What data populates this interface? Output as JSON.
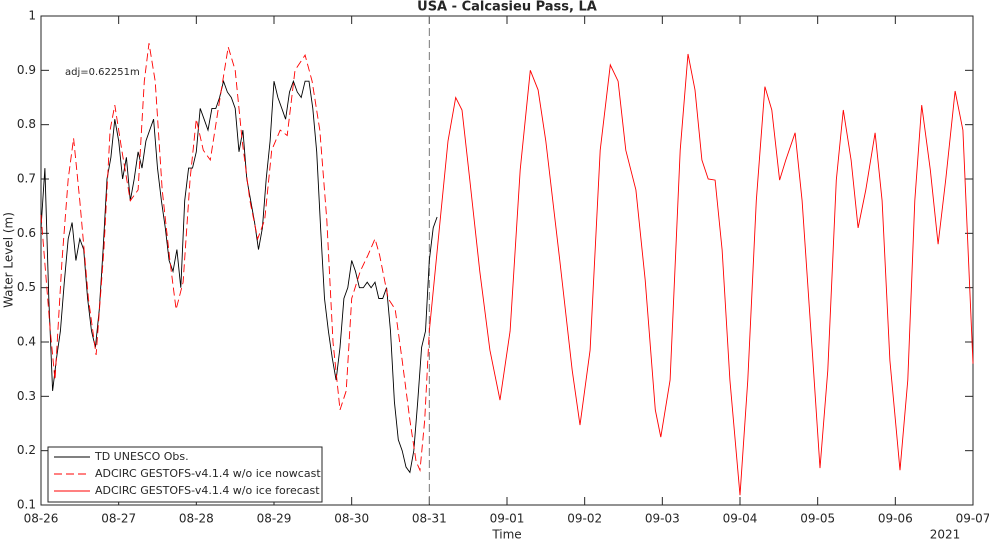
{
  "chart_data": {
    "type": "line",
    "title": "USA - Calcasieu Pass, LA",
    "xlabel": "Time",
    "ylabel": "Water Level (m)",
    "x_year_label": "2021",
    "annotation": "adj=0.62251m",
    "xlim": [
      0,
      12
    ],
    "ylim": [
      0.1,
      1
    ],
    "xticks": [
      {
        "value": 0,
        "label": "08-26"
      },
      {
        "value": 1,
        "label": "08-27"
      },
      {
        "value": 2,
        "label": "08-28"
      },
      {
        "value": 3,
        "label": "08-29"
      },
      {
        "value": 4,
        "label": "08-30"
      },
      {
        "value": 5,
        "label": "08-31"
      },
      {
        "value": 6,
        "label": "09-01"
      },
      {
        "value": 7,
        "label": "09-02"
      },
      {
        "value": 8,
        "label": "09-03"
      },
      {
        "value": 9,
        "label": "09-04"
      },
      {
        "value": 10,
        "label": "09-05"
      },
      {
        "value": 11,
        "label": "09-06"
      },
      {
        "value": 12,
        "label": "09-07"
      }
    ],
    "yticks": [
      0.1,
      0.2,
      0.3,
      0.4,
      0.5,
      0.6,
      0.7,
      0.8,
      0.9,
      1
    ],
    "forecast_start": 5,
    "legend": "lower-left",
    "grid": false,
    "series": [
      {
        "name": "TD UNESCO Obs.",
        "color": "#000000",
        "dash": false,
        "x": [
          0,
          0.05,
          0.1,
          0.15,
          0.2,
          0.25,
          0.3,
          0.35,
          0.4,
          0.45,
          0.5,
          0.55,
          0.6,
          0.65,
          0.7,
          0.75,
          0.8,
          0.85,
          0.9,
          0.95,
          1,
          1.05,
          1.1,
          1.15,
          1.2,
          1.25,
          1.3,
          1.35,
          1.4,
          1.45,
          1.5,
          1.55,
          1.6,
          1.65,
          1.7,
          1.75,
          1.8,
          1.85,
          1.9,
          1.95,
          2,
          2.05,
          2.1,
          2.15,
          2.2,
          2.25,
          2.3,
          2.35,
          2.4,
          2.45,
          2.5,
          2.55,
          2.6,
          2.65,
          2.7,
          2.75,
          2.8,
          2.85,
          2.9,
          2.95,
          3,
          3.05,
          3.1,
          3.15,
          3.2,
          3.25,
          3.3,
          3.35,
          3.4,
          3.45,
          3.5,
          3.55,
          3.6,
          3.65,
          3.7,
          3.75,
          3.8,
          3.85,
          3.9,
          3.95,
          4,
          4.05,
          4.1,
          4.15,
          4.2,
          4.25,
          4.3,
          4.35,
          4.4,
          4.45,
          4.5,
          4.55,
          4.6,
          4.65,
          4.7,
          4.75,
          4.8,
          4.85,
          4.9,
          4.95,
          5,
          5.05,
          5.1
        ],
        "values": [
          0.61,
          0.72,
          0.48,
          0.31,
          0.37,
          0.42,
          0.51,
          0.59,
          0.62,
          0.55,
          0.59,
          0.57,
          0.48,
          0.42,
          0.39,
          0.46,
          0.57,
          0.7,
          0.74,
          0.81,
          0.77,
          0.7,
          0.74,
          0.66,
          0.7,
          0.75,
          0.72,
          0.77,
          0.79,
          0.81,
          0.72,
          0.66,
          0.61,
          0.55,
          0.53,
          0.57,
          0.5,
          0.66,
          0.72,
          0.72,
          0.75,
          0.83,
          0.81,
          0.79,
          0.83,
          0.83,
          0.85,
          0.88,
          0.86,
          0.85,
          0.83,
          0.75,
          0.79,
          0.7,
          0.66,
          0.62,
          0.57,
          0.61,
          0.7,
          0.77,
          0.88,
          0.85,
          0.83,
          0.81,
          0.86,
          0.88,
          0.86,
          0.85,
          0.88,
          0.88,
          0.83,
          0.75,
          0.61,
          0.48,
          0.42,
          0.37,
          0.33,
          0.39,
          0.48,
          0.5,
          0.55,
          0.53,
          0.5,
          0.5,
          0.51,
          0.5,
          0.51,
          0.48,
          0.48,
          0.5,
          0.42,
          0.29,
          0.22,
          0.2,
          0.17,
          0.16,
          0.2,
          0.29,
          0.39,
          0.42,
          0.55,
          0.61,
          0.63
        ]
      },
      {
        "name": "ADCIRC GESTOFS-v4.1.4 w/o ice nowcast",
        "color": "#ff0000",
        "dash": true,
        "x": [
          0,
          0.12,
          0.18,
          0.27,
          0.35,
          0.42,
          0.5,
          0.61,
          0.71,
          0.81,
          0.89,
          0.95,
          1.04,
          1.15,
          1.25,
          1.33,
          1.39,
          1.47,
          1.56,
          1.66,
          1.74,
          1.83,
          1.92,
          2,
          2.09,
          2.18,
          2.28,
          2.41,
          2.5,
          2.59,
          2.69,
          2.79,
          2.88,
          2.97,
          3.08,
          3.17,
          3.27,
          3.4,
          3.49,
          3.59,
          3.68,
          3.76,
          3.85,
          3.93,
          4,
          4.11,
          4.21,
          4.3,
          4.36,
          4.47,
          4.56,
          4.65,
          4.75,
          4.83,
          4.88,
          4.94,
          5
        ],
        "values": [
          0.634,
          0.42,
          0.33,
          0.55,
          0.7,
          0.775,
          0.66,
          0.48,
          0.376,
          0.57,
          0.79,
          0.836,
          0.753,
          0.66,
          0.68,
          0.88,
          0.95,
          0.88,
          0.68,
          0.55,
          0.46,
          0.51,
          0.7,
          0.81,
          0.753,
          0.735,
          0.827,
          0.943,
          0.9,
          0.77,
          0.66,
          0.59,
          0.625,
          0.753,
          0.79,
          0.78,
          0.9,
          0.928,
          0.88,
          0.79,
          0.625,
          0.4,
          0.275,
          0.31,
          0.48,
          0.53,
          0.56,
          0.59,
          0.56,
          0.48,
          0.46,
          0.366,
          0.256,
          0.18,
          0.164,
          0.256,
          0.42
        ]
      },
      {
        "name": "ADCIRC GESTOFS-v4.1.4 w/o ice forecast",
        "color": "#ff0000",
        "dash": false,
        "x": [
          5,
          5.14,
          5.24,
          5.34,
          5.42,
          5.52,
          5.65,
          5.78,
          5.91,
          6.04,
          6.17,
          6.3,
          6.4,
          6.5,
          6.68,
          6.84,
          6.94,
          7.07,
          7.2,
          7.33,
          7.43,
          7.53,
          7.66,
          7.78,
          7.91,
          7.98,
          8.1,
          8.23,
          8.33,
          8.42,
          8.51,
          8.59,
          8.68,
          8.77,
          8.87,
          9,
          9.1,
          9.21,
          9.32,
          9.41,
          9.51,
          9.59,
          9.71,
          9.8,
          9.93,
          10.03,
          10.13,
          10.24,
          10.33,
          10.43,
          10.52,
          10.62,
          10.74,
          10.83,
          10.93,
          11.06,
          11.16,
          11.25,
          11.34,
          11.45,
          11.55,
          11.65,
          11.77,
          11.87,
          12
        ],
        "values": [
          0.42,
          0.625,
          0.77,
          0.85,
          0.827,
          0.7,
          0.53,
          0.385,
          0.293,
          0.42,
          0.717,
          0.9,
          0.864,
          0.77,
          0.55,
          0.348,
          0.247,
          0.385,
          0.753,
          0.91,
          0.88,
          0.753,
          0.68,
          0.514,
          0.275,
          0.225,
          0.33,
          0.753,
          0.93,
          0.864,
          0.735,
          0.7,
          0.698,
          0.57,
          0.33,
          0.118,
          0.33,
          0.66,
          0.87,
          0.827,
          0.698,
          0.735,
          0.785,
          0.66,
          0.385,
          0.168,
          0.348,
          0.698,
          0.827,
          0.735,
          0.61,
          0.68,
          0.785,
          0.66,
          0.366,
          0.164,
          0.33,
          0.66,
          0.836,
          0.717,
          0.58,
          0.7,
          0.862,
          0.79,
          0.36
        ]
      }
    ]
  }
}
